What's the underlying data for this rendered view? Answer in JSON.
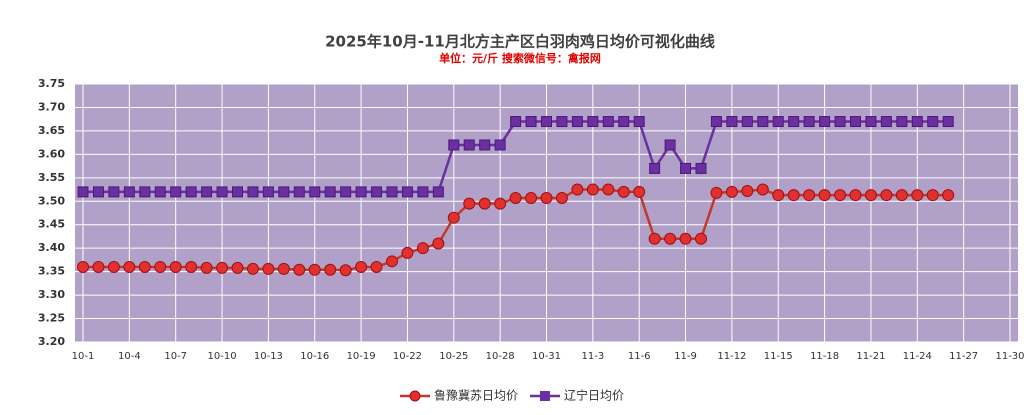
{
  "chart_data": {
    "type": "line",
    "title": "2025年10月-11月北方主产区白羽肉鸡日均价可视化曲线",
    "subtitle": "单位：元/斤    搜索微信号：禽报网",
    "categories": [
      "10-1",
      null,
      null,
      "10-4",
      null,
      null,
      "10-7",
      null,
      null,
      "10-10",
      null,
      null,
      "10-13",
      null,
      null,
      "10-16",
      null,
      null,
      "10-19",
      null,
      null,
      "10-22",
      null,
      null,
      "10-25",
      null,
      null,
      "10-28",
      null,
      null,
      "10-31",
      null,
      null,
      "11-3",
      null,
      null,
      "11-6",
      null,
      null,
      "11-9",
      null,
      null,
      "11-12",
      null,
      null,
      "11-15",
      null,
      null,
      "11-18",
      null,
      null,
      "11-21",
      null,
      null,
      "11-24",
      null,
      null,
      "11-27",
      null,
      null,
      "11-30"
    ],
    "series": [
      {
        "name": "鲁豫冀苏日均价",
        "color": "#e03030",
        "line_color": "#c0392b",
        "values": [
          3.36,
          3.36,
          3.36,
          3.36,
          3.36,
          3.36,
          3.36,
          3.36,
          3.358,
          3.358,
          3.358,
          3.356,
          3.356,
          3.356,
          3.354,
          3.354,
          3.354,
          3.353,
          3.36,
          3.36,
          3.372,
          3.39,
          3.4,
          3.41,
          3.465,
          3.495,
          3.495,
          3.495,
          3.507,
          3.507,
          3.507,
          3.507,
          3.525,
          3.525,
          3.525,
          3.52,
          3.52,
          3.42,
          3.42,
          3.42,
          3.42,
          3.518,
          3.52,
          3.522,
          3.525,
          3.513,
          3.513,
          3.513,
          3.513,
          3.513,
          3.513,
          3.513,
          3.513,
          3.513,
          3.513,
          3.513,
          3.513,
          null,
          null,
          null,
          null
        ]
      },
      {
        "name": "辽宁日均价",
        "color": "#6a2fa0",
        "line_color": "#6a2fa0",
        "values": [
          3.52,
          3.52,
          3.52,
          3.52,
          3.52,
          3.52,
          3.52,
          3.52,
          3.52,
          3.52,
          3.52,
          3.52,
          3.52,
          3.52,
          3.52,
          3.52,
          3.52,
          3.52,
          3.52,
          3.52,
          3.52,
          3.52,
          3.52,
          3.52,
          3.62,
          3.62,
          3.62,
          3.62,
          3.67,
          3.67,
          3.67,
          3.67,
          3.67,
          3.67,
          3.67,
          3.67,
          3.67,
          3.57,
          3.62,
          3.57,
          3.57,
          3.67,
          3.67,
          3.67,
          3.67,
          3.67,
          3.67,
          3.67,
          3.67,
          3.67,
          3.67,
          3.67,
          3.67,
          3.67,
          3.67,
          3.67,
          3.67,
          null,
          null,
          null,
          null
        ]
      }
    ],
    "ylim": [
      3.2,
      3.75
    ],
    "yticks": [
      {
        "value": 3.2,
        "label": "3.20"
      },
      3.25,
      {
        "value": 3.3,
        "label": "3.30"
      },
      3.35,
      {
        "value": 3.4,
        "label": "3.40"
      },
      3.45,
      {
        "value": 3.5,
        "label": "3.50"
      },
      3.55,
      {
        "value": 3.6,
        "label": "3.60"
      },
      3.65,
      {
        "value": 3.7,
        "label": "3.70"
      },
      3.75
    ],
    "grid": true,
    "plot_color": "#b1a0c7",
    "legend": "bottom"
  }
}
